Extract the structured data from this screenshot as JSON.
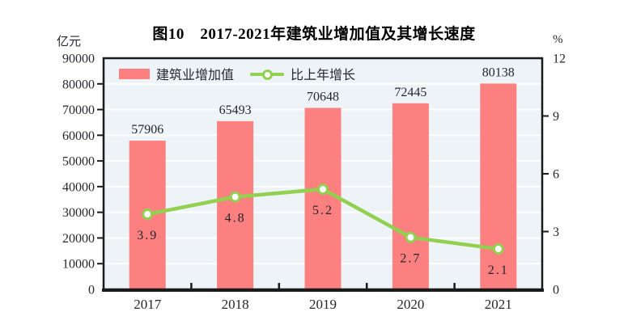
{
  "header": {
    "title": "图10　2017-2021年建筑业增加值及其增长速度"
  },
  "axes": {
    "left_unit": "亿元",
    "right_unit": "%"
  },
  "legend": {
    "items": [
      {
        "label": "建筑业增加值",
        "type": "bar",
        "color": "#FC8080"
      },
      {
        "label": "比上年增长",
        "type": "line",
        "color": "#92D050"
      }
    ]
  },
  "colors": {
    "bar": "#FC8080",
    "line": "#92D050",
    "marker_fill": "#FFFFFF",
    "plot_bg": "#EDF3F7",
    "grid": "#FFFFFF",
    "axis": "#1A1A1A",
    "text": "#26262E"
  },
  "chart_data": {
    "type": "bar+line",
    "title": "图10　2017-2021年建筑业增加值及其增长速度",
    "categories": [
      "2017",
      "2018",
      "2019",
      "2020",
      "2021"
    ],
    "series": [
      {
        "name": "建筑业增加值",
        "type": "bar",
        "axis": "left",
        "unit": "亿元",
        "color": "#FC8080",
        "values": [
          57906,
          65493,
          70648,
          72445,
          80138
        ],
        "labels": [
          "57906",
          "65493",
          "70648",
          "72445",
          "80138"
        ]
      },
      {
        "name": "比上年增长",
        "type": "line",
        "axis": "right",
        "unit": "%",
        "color": "#92D050",
        "marker": "circle-white-fill",
        "values": [
          3.9,
          4.8,
          5.2,
          2.7,
          2.1
        ],
        "labels": [
          "3.9",
          "4.8",
          "5.2",
          "2.7",
          "2.1"
        ]
      }
    ],
    "left_axis": {
      "label": "亿元",
      "min": 0,
      "max": 90000,
      "step": 10000,
      "ticks": [
        "0",
        "10000",
        "20000",
        "30000",
        "40000",
        "50000",
        "60000",
        "70000",
        "80000",
        "90000"
      ]
    },
    "right_axis": {
      "label": "%",
      "min": 0,
      "max": 12,
      "step": 3,
      "ticks": [
        "0",
        "3",
        "6",
        "9",
        "12"
      ]
    },
    "grid": "horizontal",
    "legend_position": "top-left-inside"
  }
}
